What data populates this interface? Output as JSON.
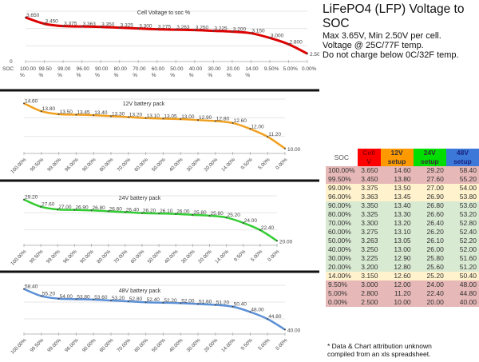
{
  "header": {
    "title": "LiFePO4 (LFP) Voltage to SOC",
    "lines": [
      "Max 3.65V, Min 2.50V per cell.",
      "Voltage @ 25C/77F temp.",
      "Do not charge below 0C/32F temp."
    ]
  },
  "footnote": [
    "* Data & Chart attribution unknown",
    "compiled from an xls spreadsheet."
  ],
  "table": {
    "headers": [
      "SOC",
      "Cell V",
      "12V setup",
      "24V setup",
      "48V setup"
    ],
    "header_colors": [
      "#ffffff",
      "#ff0000",
      "#ff9900",
      "#00dd00",
      "#3c78d8"
    ],
    "band_colors": {
      "red": "#e6b8b7",
      "yellow": "#fff2cc",
      "green": "#d9ead3"
    },
    "rows": [
      {
        "band": "red",
        "cells": [
          "100.00%",
          "3.650",
          "14.60",
          "29.20",
          "58.40"
        ]
      },
      {
        "band": "red",
        "cells": [
          "99.50%",
          "3.450",
          "13.80",
          "27.60",
          "55.20"
        ]
      },
      {
        "band": "yellow",
        "cells": [
          "99.00%",
          "3.375",
          "13.50",
          "27.00",
          "54.00"
        ]
      },
      {
        "band": "yellow",
        "cells": [
          "96.00%",
          "3.363",
          "13.45",
          "26.90",
          "53.80"
        ]
      },
      {
        "band": "green",
        "cells": [
          "90.00%",
          "3.350",
          "13.40",
          "26.80",
          "53.60"
        ]
      },
      {
        "band": "green",
        "cells": [
          "80.00%",
          "3.325",
          "13.30",
          "26.60",
          "53.20"
        ]
      },
      {
        "band": "green",
        "cells": [
          "70.00%",
          "3.300",
          "13.20",
          "26.40",
          "52.80"
        ]
      },
      {
        "band": "green",
        "cells": [
          "60.00%",
          "3.275",
          "13.10",
          "26.20",
          "52.40"
        ]
      },
      {
        "band": "green",
        "cells": [
          "50.00%",
          "3.263",
          "13.05",
          "26.10",
          "52.20"
        ]
      },
      {
        "band": "green",
        "cells": [
          "40.00%",
          "3.250",
          "13.00",
          "26.00",
          "52.00"
        ]
      },
      {
        "band": "green",
        "cells": [
          "30.00%",
          "3.225",
          "12.90",
          "25.80",
          "51.60"
        ]
      },
      {
        "band": "green",
        "cells": [
          "20.00%",
          "3.200",
          "12.80",
          "25.60",
          "51.20"
        ]
      },
      {
        "band": "yellow",
        "cells": [
          "14.00%",
          "3.150",
          "12.60",
          "25.20",
          "50.40"
        ]
      },
      {
        "band": "red",
        "cells": [
          "9.50%",
          "3.000",
          "12.00",
          "24.00",
          "48.00"
        ]
      },
      {
        "band": "red",
        "cells": [
          "5.00%",
          "2.800",
          "11.20",
          "22.40",
          "44.80"
        ]
      },
      {
        "band": "red",
        "cells": [
          "0.00%",
          "2.500",
          "10.00",
          "20.00",
          "40.00"
        ]
      }
    ]
  },
  "chart_data": [
    {
      "type": "line",
      "title": "Cell Voltage to soc %",
      "xlabel": "SOC",
      "y_tick_labels": [
        "0"
      ],
      "color": "#dd0000",
      "ylim": [
        2.25,
        3.9
      ],
      "categories": [
        "100.00 %",
        "99.50 %",
        "99.00 %",
        "96.00 %",
        "90.00 %",
        "80.00 %",
        "70.00 %",
        "60.00 %",
        "50.00 %",
        "40.00 %",
        "30.00 %",
        "20.00 %",
        "14.00 %",
        "9.50%",
        "5.00%",
        "0.00%"
      ],
      "values": [
        3.65,
        3.45,
        3.375,
        3.363,
        3.35,
        3.325,
        3.3,
        3.275,
        3.263,
        3.25,
        3.225,
        3.2,
        3.15,
        3.0,
        2.8,
        2.5
      ],
      "labels": [
        "3.650",
        "3.450",
        "3.375",
        "3.363",
        "3.350",
        "3.325",
        "3.300",
        "3.275",
        "3.263",
        "3.250",
        "3.225",
        "3.200",
        "3.150",
        "3.000",
        "2.800",
        "2.500"
      ]
    },
    {
      "type": "line",
      "title": "12V battery pack",
      "color": "#f0a020",
      "ylim": [
        9.5,
        15.2
      ],
      "categories": [
        "100.00%",
        "99.50%",
        "99.00%",
        "96.00%",
        "90.00%",
        "80.00%",
        "70.00%",
        "60.00%",
        "50.00%",
        "40.00%",
        "30.00%",
        "20.00%",
        "14.00%",
        "9.50%",
        "5.00%",
        "0.00%"
      ],
      "values": [
        14.6,
        13.8,
        13.5,
        13.45,
        13.4,
        13.3,
        13.2,
        13.1,
        13.05,
        13.0,
        12.9,
        12.8,
        12.6,
        12.0,
        11.2,
        10.0
      ],
      "labels": [
        "14.60",
        "13.80",
        "13.50",
        "13.45",
        "13.40",
        "13.30",
        "13.20",
        "13.10",
        "13.05",
        "13.00",
        "12.90",
        "12.80",
        "12.60",
        "12.00",
        "11.20",
        "10.00"
      ]
    },
    {
      "type": "line",
      "title": "24V battery pack",
      "color": "#33cc33",
      "ylim": [
        19,
        30.4
      ],
      "categories": [
        "100.00%",
        "99.50%",
        "99.00%",
        "96.00%",
        "90.00%",
        "80.00%",
        "70.00%",
        "60.00%",
        "50.00%",
        "40.00%",
        "30.00%",
        "20.00%",
        "14.00%",
        "9.50%",
        "5.00%",
        "0.00%"
      ],
      "values": [
        29.2,
        27.6,
        27.0,
        26.9,
        26.8,
        26.6,
        26.4,
        26.2,
        26.1,
        26.0,
        25.8,
        25.6,
        25.2,
        24.0,
        22.4,
        20.0
      ],
      "labels": [
        "29.20",
        "27.60",
        "27.00",
        "26.90",
        "26.80",
        "26.60",
        "26.40",
        "26.20",
        "26.10",
        "26.00",
        "25.80",
        "25.60",
        "25.20",
        "24.00",
        "22.40",
        "20.00"
      ]
    },
    {
      "type": "line",
      "title": "48V battery pack",
      "color": "#5b8fd6",
      "ylim": [
        38,
        60.8
      ],
      "categories": [
        "100.00%",
        "99.50%",
        "99.00%",
        "96.00%",
        "90.00%",
        "80.00%",
        "70.00%",
        "60.00%",
        "50.00%",
        "40.00%",
        "30.00%",
        "20.00%",
        "14.00%",
        "9.50%",
        "5.00%",
        "0.00%"
      ],
      "values": [
        58.4,
        55.2,
        54.0,
        53.8,
        53.6,
        53.2,
        52.8,
        52.4,
        52.2,
        52.0,
        51.6,
        51.2,
        50.4,
        48.0,
        44.8,
        40.0
      ],
      "labels": [
        "58.40",
        "55.20",
        "54.00",
        "53.80",
        "53.60",
        "53.20",
        "52.80",
        "52.40",
        "52.20",
        "52.00",
        "51.60",
        "51.20",
        "50.40",
        "48.00",
        "44.80",
        "40.00"
      ]
    }
  ]
}
